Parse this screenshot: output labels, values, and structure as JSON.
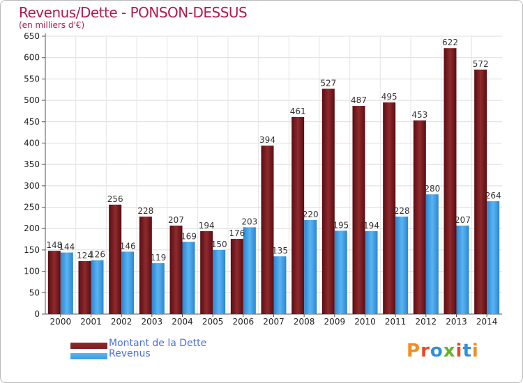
{
  "title": "Revenus/Dette - PONSON-DESSUS",
  "unit_label": "(en milliers d'€)",
  "brand": "Proxiti",
  "brand_colors": [
    "#f28c1e",
    "#e8472b",
    "#2f8fd8",
    "#68b22c",
    "#e8472b",
    "#2f8fd8",
    "#f28c1e"
  ],
  "chart_data": {
    "type": "bar",
    "title": "Revenus/Dette - PONSON-DESSUS",
    "ylabel": "(en milliers d'€)",
    "ylim": [
      0,
      650
    ],
    "yticks": [
      0,
      50,
      100,
      150,
      200,
      250,
      300,
      350,
      400,
      450,
      500,
      550,
      600,
      650
    ],
    "grid": true,
    "legend_position": "bottom-left",
    "categories": [
      "2000",
      "2001",
      "2002",
      "2003",
      "2004",
      "2005",
      "2006",
      "2007",
      "2008",
      "2009",
      "2010",
      "2011",
      "2012",
      "2013",
      "2014"
    ],
    "series": [
      {
        "name": "Montant de la Dette",
        "color": "#7a1f22",
        "values": [
          148,
          124,
          256,
          228,
          207,
          194,
          176,
          394,
          461,
          527,
          487,
          495,
          453,
          622,
          572
        ]
      },
      {
        "name": "Revenus",
        "color": "#3a9ee6",
        "values": [
          144,
          126,
          146,
          119,
          169,
          150,
          203,
          135,
          220,
          195,
          194,
          228,
          280,
          207,
          264
        ]
      }
    ]
  }
}
